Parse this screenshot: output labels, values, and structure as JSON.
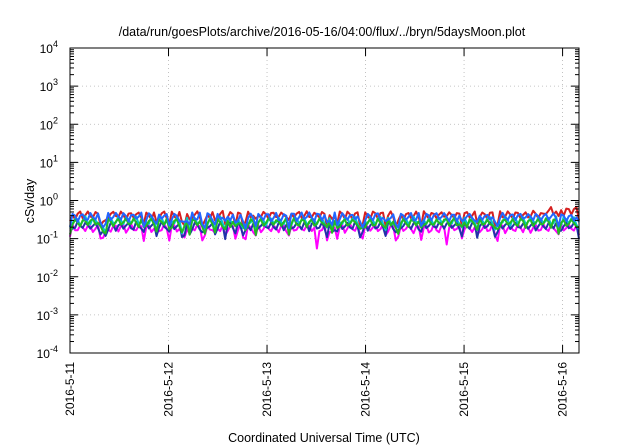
{
  "chart_data": {
    "type": "line",
    "title": "/data/run/goesPlots/archive/2016-05-16/04:00/flux/../bryn/5daysMoon.plot",
    "xlabel": "Coordinated Universal Time (UTC)",
    "ylabel": "cSv/day",
    "y_scale": "log",
    "ylim_exponents": [
      -4,
      4
    ],
    "yticks": [
      {
        "base": "10",
        "exp": "4"
      },
      {
        "base": "10",
        "exp": "3"
      },
      {
        "base": "10",
        "exp": "2"
      },
      {
        "base": "10",
        "exp": "1"
      },
      {
        "base": "10",
        "exp": "0"
      },
      {
        "base": "10",
        "exp": "-1"
      },
      {
        "base": "10",
        "exp": "-2"
      },
      {
        "base": "10",
        "exp": "-3"
      },
      {
        "base": "10",
        "exp": "-4"
      }
    ],
    "xlim": [
      "2016-05-11",
      "2016-05-16T04:00"
    ],
    "xticks": [
      "2016-5-11",
      "2016-5-12",
      "2016-5-13",
      "2016-5-14",
      "2016-5-15",
      "2016-5-16"
    ],
    "grid": true,
    "series": [
      {
        "color": "#ff00ff",
        "mean": 0.19,
        "dips": [
          [
            "2016-05-13T12:00",
            0.055
          ],
          [
            "2016-05-14T19:30",
            0.07
          ],
          [
            "2016-05-13T14:30",
            0.09
          ]
        ]
      },
      {
        "color": "#d62020",
        "mean": 0.42
      },
      {
        "color": "#2233aa",
        "mean": 0.22
      },
      {
        "color": "#00c8c8",
        "mean": 0.3
      },
      {
        "color": "#22bb22",
        "mean": 0.27
      },
      {
        "color": "#2266ff",
        "mean": 0.38
      }
    ]
  }
}
